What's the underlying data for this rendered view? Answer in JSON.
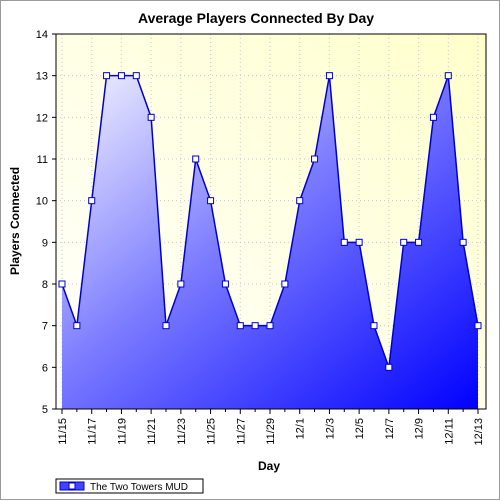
{
  "chart_data": {
    "type": "area",
    "title": "Average Players Connected By Day",
    "xlabel": "Day",
    "ylabel": "Players Connected",
    "ylim": [
      5,
      14
    ],
    "yticks": [
      5,
      6,
      7,
      8,
      9,
      10,
      11,
      12,
      13,
      14
    ],
    "x": [
      "11/15",
      "11/16",
      "11/17",
      "11/18",
      "11/19",
      "11/20",
      "11/21",
      "11/22",
      "11/23",
      "11/24",
      "11/25",
      "11/26",
      "11/27",
      "11/28",
      "11/29",
      "11/30",
      "12/1",
      "12/2",
      "12/3",
      "12/4",
      "12/5",
      "12/6",
      "12/7",
      "12/8",
      "12/9",
      "12/10",
      "12/11",
      "12/12",
      "12/13"
    ],
    "xtick_labels": [
      "11/15",
      "11/17",
      "11/19",
      "11/21",
      "11/23",
      "11/25",
      "11/27",
      "11/29",
      "12/1",
      "12/3",
      "12/5",
      "12/7",
      "12/9",
      "12/11",
      "12/13"
    ],
    "series": [
      {
        "name": "The Two Towers MUD",
        "values": [
          8,
          7,
          10,
          13,
          13,
          13,
          12,
          7,
          8,
          11,
          10,
          8,
          7,
          7,
          7,
          8,
          10,
          11,
          13,
          9,
          9,
          7,
          6,
          9,
          9,
          12,
          13,
          9,
          7
        ]
      }
    ],
    "grid": true,
    "legend_position": "bottom-left",
    "colors": {
      "line": "#0000cc",
      "fill_light": "#e8e8ff",
      "fill_dark": "#0000ff",
      "plot_bg_light": "#ffffff",
      "plot_bg_dark": "#ffffcc"
    }
  }
}
